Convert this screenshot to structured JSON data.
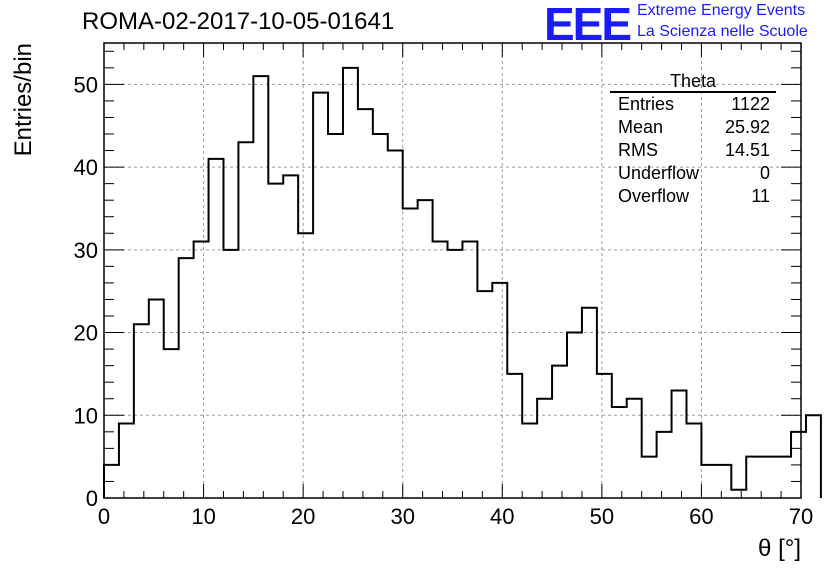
{
  "header": {
    "run_id": "ROMA-02-2017-10-05-01641",
    "logo_text": "EEE",
    "logo_line1": "Extreme Energy Events",
    "logo_line2": "La Scienza nelle Scuole"
  },
  "stats": {
    "title": "Theta",
    "rows": [
      {
        "label": "Entries",
        "value": "1122"
      },
      {
        "label": "Mean",
        "value": "25.92"
      },
      {
        "label": "RMS",
        "value": "14.51"
      },
      {
        "label": "Underflow",
        "value": "0"
      },
      {
        "label": "Overflow",
        "value": "11"
      }
    ]
  },
  "chart_data": {
    "type": "histogram",
    "title": "ROMA-02-2017-10-05-01641",
    "xlabel": "θ [°]",
    "ylabel": "Entries/bin",
    "xlim": [
      0,
      70
    ],
    "ylim": [
      0,
      55
    ],
    "grid": true,
    "bin_width": 1.5,
    "x_start": 0,
    "values": [
      4,
      9,
      21,
      24,
      18,
      29,
      31,
      41,
      30,
      43,
      51,
      38,
      39,
      32,
      49,
      44,
      52,
      47,
      44,
      42,
      35,
      36,
      31,
      30,
      31,
      25,
      26,
      15,
      9,
      12,
      16,
      20,
      23,
      15,
      11,
      12,
      5,
      8,
      13,
      9,
      4,
      4,
      1,
      5,
      5,
      5,
      8,
      10
    ],
    "x_ticks": [
      0,
      10,
      20,
      30,
      40,
      50,
      60,
      70
    ],
    "y_ticks": [
      0,
      10,
      20,
      30,
      40,
      50
    ],
    "colors": {
      "line": "#000000",
      "grid": "#9a9a9a",
      "logo": "#1a1aff"
    }
  }
}
